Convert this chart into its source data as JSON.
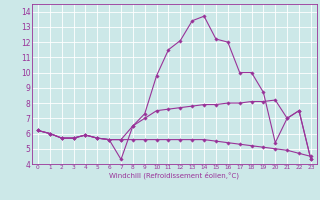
{
  "title": "",
  "xlabel": "Windchill (Refroidissement éolien,°C)",
  "ylabel": "",
  "xlim": [
    -0.5,
    23.5
  ],
  "ylim": [
    4,
    14.5
  ],
  "xticks": [
    0,
    1,
    2,
    3,
    4,
    5,
    6,
    7,
    8,
    9,
    10,
    11,
    12,
    13,
    14,
    15,
    16,
    17,
    18,
    19,
    20,
    21,
    22,
    23
  ],
  "yticks": [
    4,
    5,
    6,
    7,
    8,
    9,
    10,
    11,
    12,
    13,
    14
  ],
  "bg_color": "#cce8e8",
  "line_color": "#993399",
  "grid_color": "#ffffff",
  "series": [
    {
      "x": [
        0,
        1,
        2,
        3,
        4,
        5,
        6,
        7,
        8,
        9,
        10,
        11,
        12,
        13,
        14,
        15,
        16,
        17,
        18,
        19,
        20,
        21,
        22,
        23
      ],
      "y": [
        6.2,
        6.0,
        5.7,
        5.7,
        5.9,
        5.7,
        5.6,
        5.6,
        5.6,
        5.6,
        5.6,
        5.6,
        5.6,
        5.6,
        5.6,
        5.5,
        5.4,
        5.3,
        5.2,
        5.1,
        5.0,
        4.9,
        4.7,
        4.5
      ]
    },
    {
      "x": [
        0,
        1,
        2,
        3,
        4,
        5,
        6,
        7,
        8,
        9,
        10,
        11,
        12,
        13,
        14,
        15,
        16,
        17,
        18,
        19,
        20,
        21,
        22,
        23
      ],
      "y": [
        6.2,
        6.0,
        5.7,
        5.7,
        5.9,
        5.7,
        5.6,
        4.3,
        6.5,
        7.3,
        9.8,
        11.5,
        12.1,
        13.4,
        13.7,
        12.2,
        12.0,
        10.0,
        10.0,
        8.7,
        5.4,
        7.0,
        7.5,
        4.3
      ]
    },
    {
      "x": [
        0,
        1,
        2,
        3,
        4,
        5,
        6,
        7,
        8,
        9,
        10,
        11,
        12,
        13,
        14,
        15,
        16,
        17,
        18,
        19,
        20,
        21,
        22,
        23
      ],
      "y": [
        6.2,
        6.0,
        5.7,
        5.7,
        5.9,
        5.7,
        5.6,
        5.6,
        6.5,
        7.0,
        7.5,
        7.6,
        7.7,
        7.8,
        7.9,
        7.9,
        8.0,
        8.0,
        8.1,
        8.1,
        8.2,
        7.0,
        7.5,
        4.3
      ]
    }
  ],
  "xlabel_fontsize": 5.0,
  "tick_fontsize_x": 4.2,
  "tick_fontsize_y": 5.5,
  "linewidth": 0.8,
  "markersize": 1.8
}
